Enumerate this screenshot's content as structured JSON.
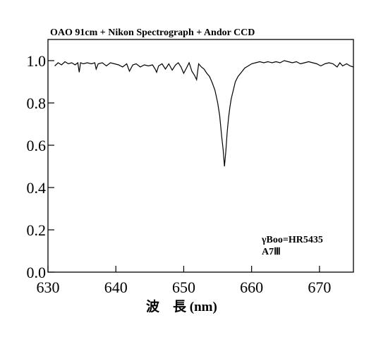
{
  "chart_data": {
    "type": "line",
    "title": "OAO 91cm + Nikon Spectrograph + Andor CCD",
    "xlabel": "波　長 (nm)",
    "ylabel": "",
    "xlim": [
      630,
      675
    ],
    "ylim": [
      0.0,
      1.1
    ],
    "xticks": [
      630,
      640,
      650,
      660,
      670
    ],
    "yticks": [
      0.0,
      0.2,
      0.4,
      0.6,
      0.8,
      1.0
    ],
    "xtick_labels": [
      "630",
      "640",
      "650",
      "660",
      "670"
    ],
    "ytick_labels": [
      "0.0",
      "0.2",
      "0.4",
      "0.6",
      "0.8",
      "1.0"
    ],
    "grid": false,
    "annotations": [
      "γBoo=HR5435",
      "A7Ⅲ"
    ],
    "series": [
      {
        "x": [
          631.0,
          631.5,
          632.0,
          632.5,
          633.0,
          633.5,
          634.0,
          634.4,
          634.6,
          634.8,
          635.2,
          635.8,
          636.4,
          636.9,
          637.1,
          637.4,
          638.0,
          638.6,
          639.2,
          639.8,
          640.4,
          641.0,
          641.6,
          642.0,
          642.5,
          643.0,
          643.6,
          644.2,
          644.8,
          645.4,
          645.8,
          646.0,
          646.3,
          646.8,
          647.3,
          647.8,
          648.3,
          648.8,
          649.2,
          649.6,
          650.0,
          650.4,
          650.8,
          651.2,
          651.6,
          651.9,
          652.2,
          652.6,
          653.0,
          653.4,
          653.8,
          654.2,
          654.6,
          655.0,
          655.3,
          655.6,
          655.8,
          656.0,
          656.2,
          656.4,
          656.6,
          656.8,
          657.0,
          657.3,
          657.6,
          658.0,
          658.5,
          659.0,
          659.5,
          660.0,
          660.6,
          661.2,
          661.8,
          662.4,
          663.0,
          663.6,
          664.2,
          664.8,
          665.4,
          666.0,
          666.6,
          667.2,
          667.8,
          668.4,
          669.0,
          669.6,
          670.2,
          670.8,
          671.4,
          672.0,
          672.6,
          673.0,
          673.4,
          674.0,
          674.5,
          675.0
        ],
        "values": [
          0.975,
          0.99,
          0.98,
          0.995,
          0.985,
          0.99,
          0.98,
          0.99,
          0.945,
          0.99,
          0.985,
          0.99,
          0.985,
          0.99,
          0.96,
          0.985,
          0.99,
          0.975,
          0.99,
          0.985,
          0.98,
          0.97,
          0.985,
          0.95,
          0.98,
          0.985,
          0.97,
          0.98,
          0.975,
          0.98,
          0.96,
          0.945,
          0.975,
          0.985,
          0.96,
          0.985,
          0.955,
          0.98,
          0.99,
          0.97,
          0.94,
          0.965,
          0.99,
          0.95,
          0.93,
          0.91,
          0.985,
          0.97,
          0.96,
          0.94,
          0.925,
          0.895,
          0.86,
          0.8,
          0.74,
          0.64,
          0.58,
          0.5,
          0.57,
          0.66,
          0.73,
          0.78,
          0.82,
          0.86,
          0.9,
          0.925,
          0.945,
          0.965,
          0.975,
          0.985,
          0.99,
          0.995,
          0.99,
          0.995,
          0.99,
          0.995,
          0.99,
          1.0,
          0.995,
          0.99,
          0.995,
          0.985,
          0.99,
          0.995,
          0.99,
          0.985,
          0.975,
          0.985,
          0.99,
          0.985,
          0.97,
          0.99,
          0.975,
          0.985,
          0.975,
          0.97
        ]
      }
    ]
  }
}
